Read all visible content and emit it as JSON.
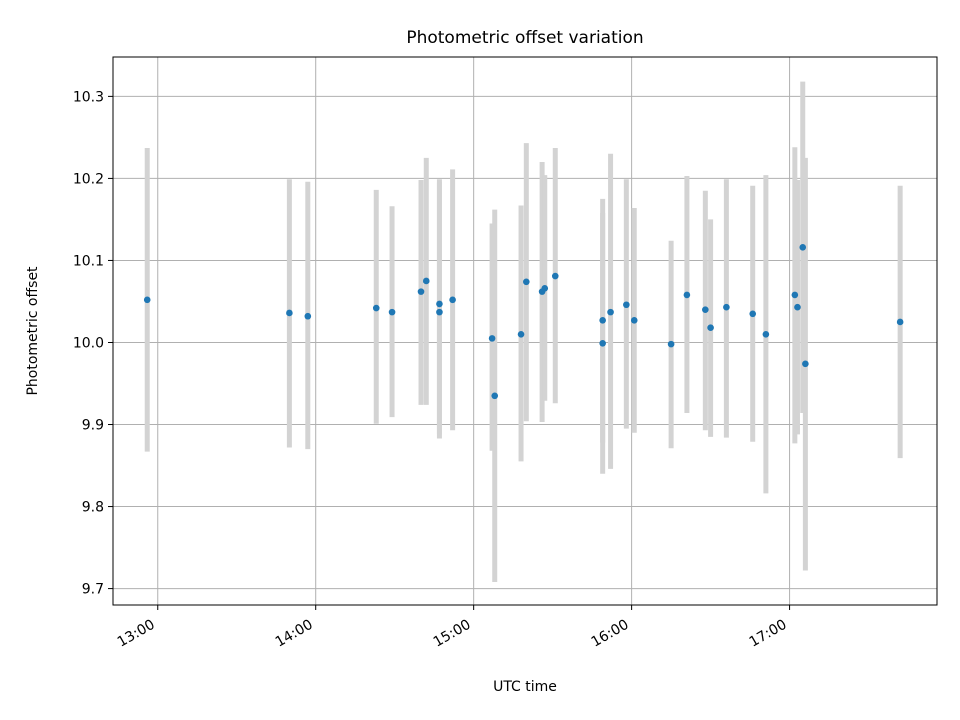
{
  "chart_data": {
    "type": "scatter",
    "title": "Photometric offset variation",
    "xlabel": "UTC time",
    "ylabel": "Photometric offset",
    "xlim": [
      "12:43",
      "17:56"
    ],
    "ylim": [
      9.68,
      10.348
    ],
    "x_ticks": [
      "13:00",
      "14:00",
      "15:00",
      "16:00",
      "17:00"
    ],
    "y_ticks": [
      "9.7",
      "9.8",
      "9.9",
      "10.0",
      "10.1",
      "10.2",
      "10.3"
    ],
    "grid": true,
    "colors": {
      "points": "#1f77b4",
      "error_bars": "#d3d3d3",
      "grid": "#b0b0b0"
    },
    "points": [
      {
        "x": "12:56",
        "y": 10.052,
        "low": 9.867,
        "high": 10.237
      },
      {
        "x": "13:50",
        "y": 10.036,
        "low": 9.872,
        "high": 10.199
      },
      {
        "x": "13:57",
        "y": 10.032,
        "low": 9.87,
        "high": 10.196
      },
      {
        "x": "14:23",
        "y": 10.042,
        "low": 9.901,
        "high": 10.186
      },
      {
        "x": "14:29",
        "y": 10.037,
        "low": 9.909,
        "high": 10.166
      },
      {
        "x": "14:40",
        "y": 10.062,
        "low": 9.924,
        "high": 10.198
      },
      {
        "x": "14:42",
        "y": 10.075,
        "low": 9.924,
        "high": 10.225
      },
      {
        "x": "14:47",
        "y": 10.047,
        "low": 9.883,
        "high": 10.195
      },
      {
        "x": "14:47",
        "y": 10.037,
        "low": 9.888,
        "high": 10.199
      },
      {
        "x": "14:52",
        "y": 10.052,
        "low": 9.893,
        "high": 10.211
      },
      {
        "x": "15:07",
        "y": 10.005,
        "low": 9.868,
        "high": 10.145
      },
      {
        "x": "15:08",
        "y": 9.935,
        "low": 9.708,
        "high": 10.162
      },
      {
        "x": "15:18",
        "y": 10.01,
        "low": 9.855,
        "high": 10.167
      },
      {
        "x": "15:20",
        "y": 10.074,
        "low": 9.904,
        "high": 10.243
      },
      {
        "x": "15:26",
        "y": 10.062,
        "low": 9.903,
        "high": 10.22
      },
      {
        "x": "15:27",
        "y": 10.066,
        "low": 9.929,
        "high": 10.204
      },
      {
        "x": "15:31",
        "y": 10.081,
        "low": 9.926,
        "high": 10.237
      },
      {
        "x": "15:49",
        "y": 9.999,
        "low": 9.84,
        "high": 10.158
      },
      {
        "x": "15:49",
        "y": 10.027,
        "low": 9.878,
        "high": 10.175
      },
      {
        "x": "15:52",
        "y": 10.037,
        "low": 9.846,
        "high": 10.23
      },
      {
        "x": "15:58",
        "y": 10.046,
        "low": 9.895,
        "high": 10.199
      },
      {
        "x": "16:01",
        "y": 10.027,
        "low": 9.89,
        "high": 10.164
      },
      {
        "x": "16:15",
        "y": 9.998,
        "low": 9.871,
        "high": 10.124
      },
      {
        "x": "16:21",
        "y": 10.058,
        "low": 9.914,
        "high": 10.203
      },
      {
        "x": "16:28",
        "y": 10.04,
        "low": 9.893,
        "high": 10.185
      },
      {
        "x": "16:30",
        "y": 10.018,
        "low": 9.885,
        "high": 10.15
      },
      {
        "x": "16:36",
        "y": 10.043,
        "low": 9.884,
        "high": 10.199
      },
      {
        "x": "16:46",
        "y": 10.035,
        "low": 9.879,
        "high": 10.191
      },
      {
        "x": "16:51",
        "y": 10.01,
        "low": 9.816,
        "high": 10.204
      },
      {
        "x": "17:02",
        "y": 10.058,
        "low": 9.877,
        "high": 10.238
      },
      {
        "x": "17:03",
        "y": 10.043,
        "low": 9.888,
        "high": 10.198
      },
      {
        "x": "17:05",
        "y": 10.116,
        "low": 9.914,
        "high": 10.318
      },
      {
        "x": "17:06",
        "y": 9.974,
        "low": 9.722,
        "high": 10.225
      },
      {
        "x": "17:42",
        "y": 10.025,
        "low": 9.859,
        "high": 10.191
      }
    ]
  }
}
